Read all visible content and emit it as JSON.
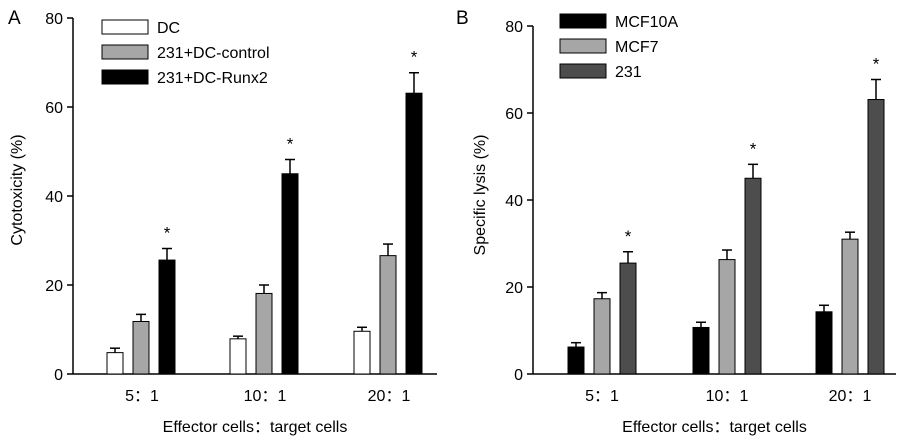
{
  "chart_data": [
    {
      "type": "bar",
      "panel_label": "A",
      "categories": [
        "5：1",
        "10：1",
        "20：1"
      ],
      "xlabel": "Effector cells：target cells",
      "ylabel": "Cytotoxicity  (%)",
      "ylim": [
        0,
        80
      ],
      "yticks": [
        0,
        20,
        40,
        60,
        80
      ],
      "legend_position": "top-left",
      "grid": false,
      "series": [
        {
          "name": "DC",
          "color": "#ffffff",
          "values": [
            4.8,
            7.9,
            9.6
          ],
          "errors": [
            1.0,
            0.6,
            0.9
          ]
        },
        {
          "name": "231+DC-control",
          "color": "#a6a6a6",
          "values": [
            11.8,
            18.1,
            26.6
          ],
          "errors": [
            1.6,
            1.9,
            2.6
          ]
        },
        {
          "name": "231+DC-Runx2",
          "color": "#000000",
          "values": [
            25.6,
            45.0,
            63.1
          ],
          "errors": [
            2.6,
            3.2,
            4.6
          ]
        }
      ],
      "annotations": [
        {
          "category": "5：1",
          "series": "231+DC-Runx2",
          "text": "*"
        },
        {
          "category": "10：1",
          "series": "231+DC-Runx2",
          "text": "*"
        },
        {
          "category": "20：1",
          "series": "231+DC-Runx2",
          "text": "*"
        }
      ]
    },
    {
      "type": "bar",
      "panel_label": "B",
      "categories": [
        "5：1",
        "10：1",
        "20：1"
      ],
      "xlabel": "Effector cells：target cells",
      "ylabel": "Specific lysis  (%)",
      "ylim": [
        0,
        80
      ],
      "yticks": [
        0,
        20,
        40,
        60,
        80
      ],
      "legend_position": "top-left",
      "grid": false,
      "series": [
        {
          "name": "MCF10A",
          "color": "#000000",
          "values": [
            6.2,
            10.7,
            14.3
          ],
          "errors": [
            1.0,
            1.2,
            1.5
          ]
        },
        {
          "name": "MCF7",
          "color": "#a6a6a6",
          "values": [
            17.3,
            26.3,
            31.0
          ],
          "errors": [
            1.4,
            2.2,
            1.6
          ]
        },
        {
          "name": "231",
          "color": "#4d4d4d",
          "values": [
            25.5,
            45.0,
            63.1
          ],
          "errors": [
            2.6,
            3.2,
            4.6
          ]
        }
      ],
      "annotations": [
        {
          "category": "5：1",
          "series": "231",
          "text": "*"
        },
        {
          "category": "10：1",
          "series": "231",
          "text": "*"
        },
        {
          "category": "20：1",
          "series": "231",
          "text": "*"
        }
      ]
    }
  ]
}
